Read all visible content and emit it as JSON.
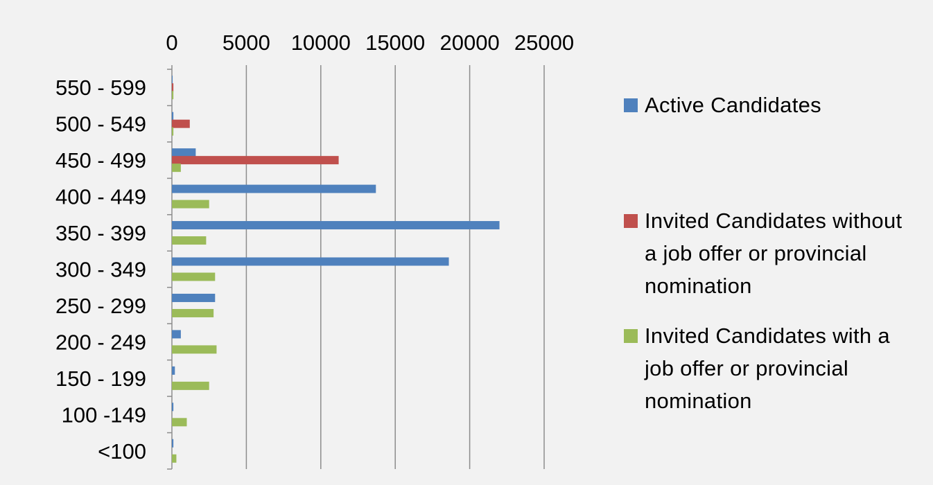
{
  "chart_data": {
    "type": "bar",
    "orientation": "horizontal",
    "categories": [
      "550 - 599",
      "500 - 549",
      "450 - 499",
      "400 - 449",
      "350 - 399",
      "300 - 349",
      "250 - 299",
      "200 - 249",
      "150 - 199",
      "100 -149",
      "<100"
    ],
    "series": [
      {
        "name": "Active Candidates",
        "color": "#4f81bd",
        "values": [
          50,
          100,
          1600,
          13700,
          22000,
          18600,
          2900,
          600,
          200,
          100,
          100
        ]
      },
      {
        "name": "Invited Candidates without a job offer or provincial nomination",
        "color": "#c0504d",
        "values": [
          100,
          1200,
          11200,
          0,
          0,
          0,
          0,
          0,
          0,
          0,
          0
        ]
      },
      {
        "name": "Invited Candidates with a job offer or provincial nomination",
        "color": "#9bbb59",
        "values": [
          100,
          100,
          600,
          2500,
          2300,
          2900,
          2800,
          3000,
          2500,
          1000,
          300
        ]
      }
    ],
    "x_ticks": [
      0,
      5000,
      10000,
      15000,
      20000,
      25000
    ],
    "xlim": [
      0,
      25000
    ],
    "x_axis_position": "top",
    "grid": "vertical gridlines",
    "legend_position": "right",
    "title": "",
    "xlabel": "",
    "ylabel": ""
  }
}
